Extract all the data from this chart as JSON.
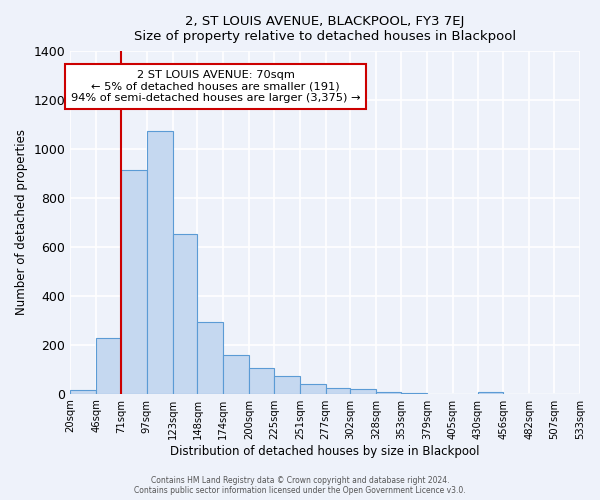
{
  "title": "2, ST LOUIS AVENUE, BLACKPOOL, FY3 7EJ",
  "subtitle": "Size of property relative to detached houses in Blackpool",
  "xlabel": "Distribution of detached houses by size in Blackpool",
  "ylabel": "Number of detached properties",
  "bar_values": [
    15,
    228,
    916,
    1072,
    651,
    293,
    158,
    107,
    72,
    40,
    25,
    18,
    5,
    2,
    0,
    0,
    8,
    0,
    0,
    0
  ],
  "bin_edges": [
    20,
    46,
    71,
    97,
    123,
    148,
    174,
    200,
    225,
    251,
    277,
    302,
    328,
    353,
    379,
    405,
    430,
    456,
    482,
    507,
    533
  ],
  "tick_labels": [
    "20sqm",
    "46sqm",
    "71sqm",
    "97sqm",
    "123sqm",
    "148sqm",
    "174sqm",
    "200sqm",
    "225sqm",
    "251sqm",
    "277sqm",
    "302sqm",
    "328sqm",
    "353sqm",
    "379sqm",
    "405sqm",
    "430sqm",
    "456sqm",
    "482sqm",
    "507sqm",
    "533sqm"
  ],
  "bar_color": "#c5d8f0",
  "bar_edge_color": "#5b9bd5",
  "ylim": [
    0,
    1400
  ],
  "yticks": [
    0,
    200,
    400,
    600,
    800,
    1000,
    1200,
    1400
  ],
  "property_line_x": 71,
  "annotation_title": "2 ST LOUIS AVENUE: 70sqm",
  "annotation_line1": "← 5% of detached houses are smaller (191)",
  "annotation_line2": "94% of semi-detached houses are larger (3,375) →",
  "annotation_box_color": "#ffffff",
  "annotation_border_color": "#cc0000",
  "property_line_color": "#cc0000",
  "footer1": "Contains HM Land Registry data © Crown copyright and database right 2024.",
  "footer2": "Contains public sector information licensed under the Open Government Licence v3.0.",
  "background_color": "#eef2fa",
  "grid_color": "#ffffff"
}
